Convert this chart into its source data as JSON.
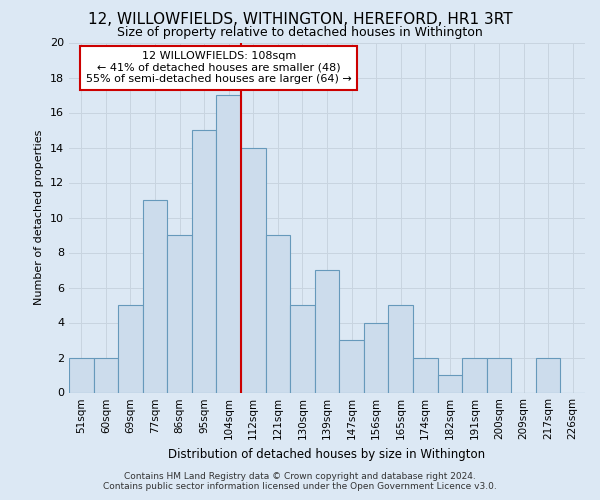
{
  "title": "12, WILLOWFIELDS, WITHINGTON, HEREFORD, HR1 3RT",
  "subtitle": "Size of property relative to detached houses in Withington",
  "xlabel": "Distribution of detached houses by size in Withington",
  "ylabel": "Number of detached properties",
  "footer_line1": "Contains HM Land Registry data © Crown copyright and database right 2024.",
  "footer_line2": "Contains public sector information licensed under the Open Government Licence v3.0.",
  "bin_labels": [
    "51sqm",
    "60sqm",
    "69sqm",
    "77sqm",
    "86sqm",
    "95sqm",
    "104sqm",
    "112sqm",
    "121sqm",
    "130sqm",
    "139sqm",
    "147sqm",
    "156sqm",
    "165sqm",
    "174sqm",
    "182sqm",
    "191sqm",
    "200sqm",
    "209sqm",
    "217sqm",
    "226sqm"
  ],
  "bar_values": [
    2,
    2,
    5,
    11,
    9,
    15,
    17,
    14,
    9,
    5,
    7,
    3,
    4,
    5,
    2,
    1,
    2,
    2,
    0,
    2,
    0
  ],
  "bar_color": "#ccdcec",
  "bar_edge_color": "#6699bb",
  "ylim": [
    0,
    20
  ],
  "yticks": [
    0,
    2,
    4,
    6,
    8,
    10,
    12,
    14,
    16,
    18,
    20
  ],
  "annotation_title": "12 WILLOWFIELDS: 108sqm",
  "annotation_line1": "← 41% of detached houses are smaller (48)",
  "annotation_line2": "55% of semi-detached houses are larger (64) →",
  "annotation_box_color": "#ffffff",
  "annotation_box_edge": "#cc0000",
  "subject_line_color": "#cc0000",
  "grid_color": "#c8d4e0",
  "background_color": "#dce8f4",
  "plot_background": "#dce8f4",
  "title_fontsize": 11,
  "subtitle_fontsize": 9
}
